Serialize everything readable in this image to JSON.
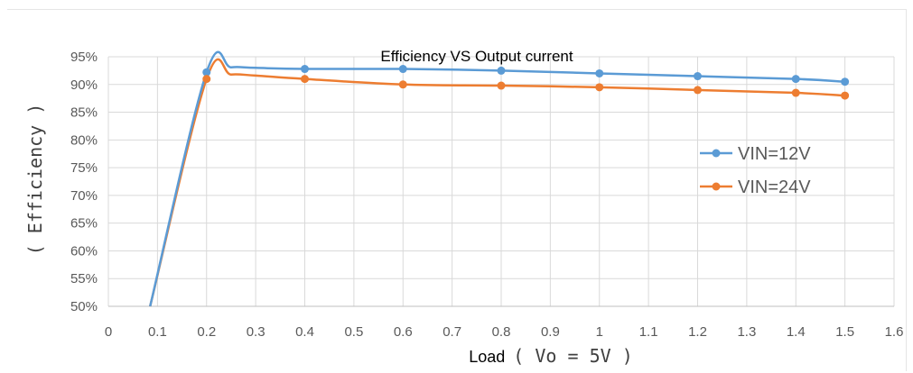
{
  "chart_data": {
    "type": "line",
    "title": "Efficiency VS Output current",
    "xlabel_prefix": "Load",
    "xlabel_suffix": "( Vo = 5V )",
    "ylabel": "( Efficiency )",
    "xlim": [
      0,
      1.6
    ],
    "ylim": [
      50,
      95
    ],
    "x_ticks": [
      "0",
      "0.1",
      "0.2",
      "0.3",
      "0.4",
      "0.5",
      "0.6",
      "0.7",
      "0.8",
      "0.9",
      "1",
      "1.1",
      "1.2",
      "1.3",
      "1.4",
      "1.5",
      "1.6"
    ],
    "y_ticks": [
      "50%",
      "55%",
      "60%",
      "65%",
      "70%",
      "75%",
      "80%",
      "85%",
      "90%",
      "95%"
    ],
    "grid": true,
    "legend_position": "right",
    "series": [
      {
        "name": "VIN=12V",
        "color": "#5b9bd5",
        "points": [
          [
            0.2,
            92.2
          ],
          [
            0.4,
            92.8
          ],
          [
            0.6,
            92.8
          ],
          [
            0.8,
            92.5
          ],
          [
            1.0,
            92.0
          ],
          [
            1.2,
            91.5
          ],
          [
            1.4,
            91.0
          ],
          [
            1.5,
            90.5
          ]
        ],
        "curve": [
          [
            0.085,
            50
          ],
          [
            0.2,
            92.2
          ],
          [
            0.25,
            93.1
          ],
          [
            0.3,
            93.0
          ],
          [
            0.4,
            92.8
          ],
          [
            0.6,
            92.8
          ],
          [
            0.8,
            92.5
          ],
          [
            1.0,
            92.0
          ],
          [
            1.2,
            91.5
          ],
          [
            1.4,
            91.0
          ],
          [
            1.5,
            90.5
          ]
        ]
      },
      {
        "name": "VIN=24V",
        "color": "#ed7d31",
        "points": [
          [
            0.2,
            91.0
          ],
          [
            0.4,
            91.0
          ],
          [
            0.6,
            90.0
          ],
          [
            0.8,
            89.8
          ],
          [
            1.0,
            89.5
          ],
          [
            1.2,
            89.0
          ],
          [
            1.4,
            88.5
          ],
          [
            1.5,
            88.0
          ]
        ],
        "curve": [
          [
            0.085,
            50
          ],
          [
            0.2,
            91.0
          ],
          [
            0.25,
            91.8
          ],
          [
            0.3,
            91.6
          ],
          [
            0.4,
            91.0
          ],
          [
            0.6,
            90.0
          ],
          [
            0.8,
            89.8
          ],
          [
            1.0,
            89.5
          ],
          [
            1.2,
            89.0
          ],
          [
            1.4,
            88.5
          ],
          [
            1.5,
            88.0
          ]
        ]
      }
    ]
  }
}
